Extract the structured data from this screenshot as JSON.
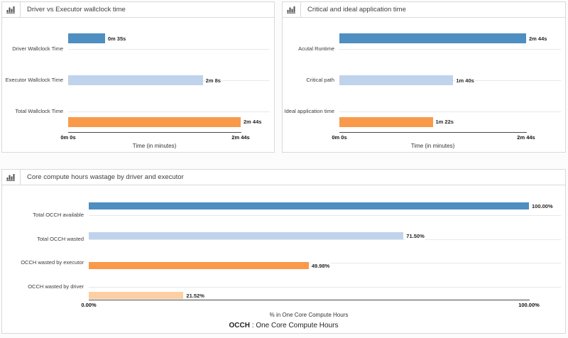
{
  "palette": {
    "blue": "#4e8ec1",
    "lightblue": "#c0d3ed",
    "orange": "#f99a4a",
    "lightorange": "#fdcfa2"
  },
  "footer": {
    "term": "OCCH",
    "separator": " : ",
    "definition": "One Core Compute Hours"
  },
  "chart_data": [
    {
      "type": "bar",
      "orientation": "horizontal",
      "title": "Driver vs Executor wallclock time",
      "icon": "bar-chart-icon",
      "categories": [
        "Driver Wallclock Time",
        "Executor Wallclock Time",
        "Total Wallclock Time"
      ],
      "values_seconds": [
        35,
        128,
        164
      ],
      "value_labels": [
        "0m 35s",
        "2m 8s",
        "2m 44s"
      ],
      "colors": [
        "blue",
        "lightblue",
        "orange"
      ],
      "xlim": [
        0,
        164
      ],
      "x_tick_labels": [
        "0m 0s",
        "2m 44s"
      ],
      "xlabel": "Time (in minutes)",
      "grid": true,
      "legend": false
    },
    {
      "type": "bar",
      "orientation": "horizontal",
      "title": "Critical and ideal application time",
      "icon": "bar-chart-icon",
      "categories": [
        "Acutal Runtime",
        "Critical path",
        "Ideal application time"
      ],
      "values_seconds": [
        164,
        100,
        82
      ],
      "value_labels": [
        "2m 44s",
        "1m 40s",
        "1m 22s"
      ],
      "colors": [
        "blue",
        "lightblue",
        "orange"
      ],
      "xlim": [
        0,
        164
      ],
      "x_tick_labels": [
        "0m 0s",
        "2m 44s"
      ],
      "xlabel": "Time (in minutes)",
      "grid": true,
      "legend": false
    },
    {
      "type": "bar",
      "orientation": "horizontal",
      "title": "Core compute hours wastage by driver and executor",
      "icon": "bar-chart-icon",
      "categories": [
        "Total OCCH available",
        "Total OCCH wasted",
        "OCCH wasted by executor",
        "OCCH wasted by driver"
      ],
      "values_percent": [
        100.0,
        71.5,
        49.98,
        21.52
      ],
      "value_labels": [
        "100.00%",
        "71.50%",
        "49.98%",
        "21.52%"
      ],
      "colors": [
        "blue",
        "lightblue",
        "orange",
        "lightorange"
      ],
      "xlim": [
        0,
        100
      ],
      "x_tick_labels": [
        "0.00%",
        "100.00%"
      ],
      "xlabel": "% in One Core Compute Hours",
      "grid": true,
      "legend": false
    }
  ]
}
